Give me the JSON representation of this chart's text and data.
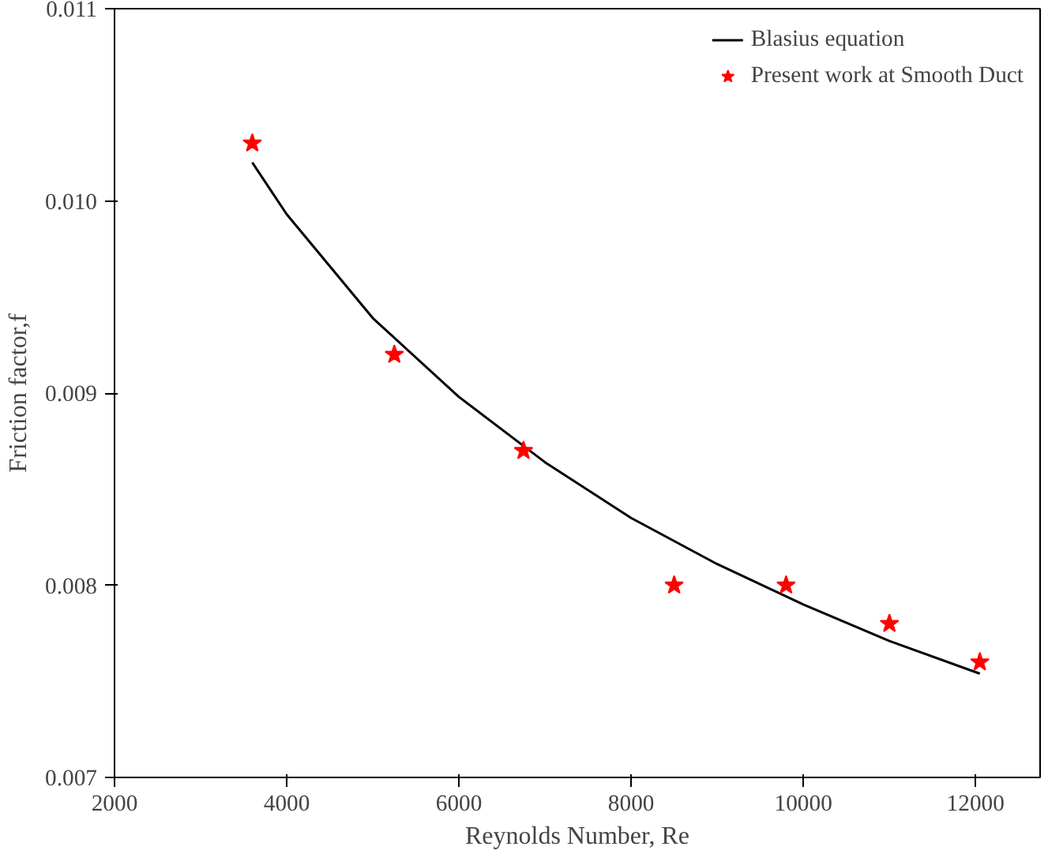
{
  "chart_data": {
    "type": "line",
    "xlabel": "Reynolds Number, Re",
    "ylabel": "Friction factor,f",
    "xlim": [
      2000,
      12750
    ],
    "xticks": [
      2000,
      4000,
      6000,
      8000,
      10000,
      12000
    ],
    "ylim": [
      0.007,
      0.011
    ],
    "yticks": [
      {
        "value": 0.007,
        "label": "0.007"
      },
      {
        "value": 0.008,
        "label": "0.008"
      },
      {
        "value": 0.009,
        "label": "0.009"
      },
      {
        "value": 0.01,
        "label": "0.010"
      },
      {
        "value": 0.011,
        "label": "0.011"
      }
    ],
    "grid": false,
    "legend": "top right",
    "series": [
      {
        "name": "Blasius equation",
        "color": "#000000",
        "marker": "none",
        "line_style": "solid",
        "x": [
          3600,
          4000,
          5000,
          6000,
          7000,
          8000,
          9000,
          10000,
          11000,
          12050
        ],
        "values": [
          0.0102,
          0.00993,
          0.00939,
          0.00898,
          0.00864,
          0.00835,
          0.00811,
          0.0079,
          0.00771,
          0.00754
        ]
      },
      {
        "name": "Present work at Smooth Duct",
        "type": "scatter",
        "color": "#ff0000",
        "marker": "star",
        "x": [
          3600,
          5250,
          6750,
          8500,
          9800,
          11000,
          12050
        ],
        "values": [
          0.0103,
          0.0092,
          0.0087,
          0.008,
          0.008,
          0.0078,
          0.0076
        ]
      }
    ]
  }
}
